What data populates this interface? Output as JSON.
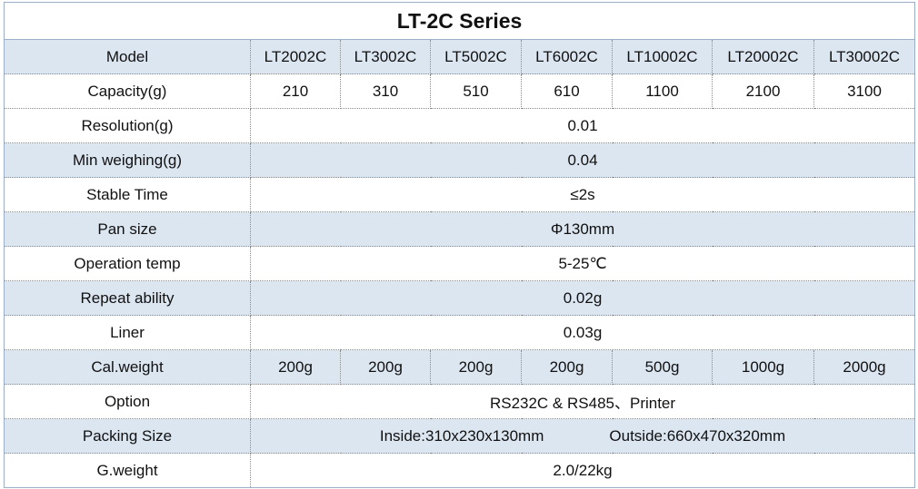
{
  "title": "LT-2C Series",
  "table": {
    "rows": [
      {
        "label": "Model",
        "cells": [
          "LT2002C",
          "LT3002C",
          "LT5002C",
          "LT6002C",
          "LT10002C",
          "LT20002C",
          "LT30002C"
        ]
      },
      {
        "label": "Capacity(g)",
        "cells": [
          "210",
          "310",
          "510",
          "610",
          "1100",
          "2100",
          "3100"
        ]
      },
      {
        "label": "Resolution(g)",
        "cells": [
          "0.01"
        ]
      },
      {
        "label": "Min weighing(g)",
        "cells": [
          "0.04"
        ]
      },
      {
        "label": "Stable Time",
        "cells": [
          "≤2s"
        ]
      },
      {
        "label": "Pan size",
        "cells": [
          "Φ130mm"
        ]
      },
      {
        "label": "Operation temp",
        "cells": [
          "5-25℃"
        ]
      },
      {
        "label": "Repeat ability",
        "cells": [
          "0.02g"
        ]
      },
      {
        "label": "Liner",
        "cells": [
          "0.03g"
        ]
      },
      {
        "label": "Cal.weight",
        "cells": [
          "200g",
          "200g",
          "200g",
          "200g",
          "500g",
          "1000g",
          "2000g"
        ]
      },
      {
        "label": "Option",
        "cells": [
          "RS232C & RS485、Printer"
        ]
      },
      {
        "label": "Packing Size",
        "cells": [
          "Inside:310x230x130mm",
          "Outside:660x470x320mm"
        ]
      },
      {
        "label": "G.weight",
        "cells": [
          "2.0/22kg"
        ]
      }
    ]
  }
}
